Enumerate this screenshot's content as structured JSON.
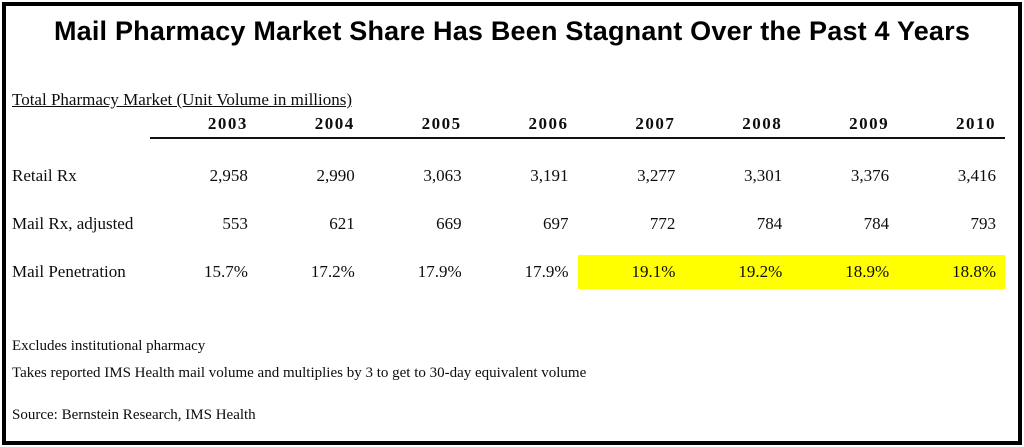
{
  "title": "Mail Pharmacy Market Share Has Been Stagnant Over the Past 4 Years",
  "table": {
    "caption": "Total Pharmacy Market (Unit Volume in millions)",
    "columns": [
      "2003",
      "2004",
      "2005",
      "2006",
      "2007",
      "2008",
      "2009",
      "2010"
    ],
    "rows": [
      {
        "label": "Retail Rx",
        "values": [
          "2,958",
          "2,990",
          "3,063",
          "3,191",
          "3,277",
          "3,301",
          "3,376",
          "3,416"
        ]
      },
      {
        "label": "Mail Rx, adjusted",
        "values": [
          "553",
          "621",
          "669",
          "697",
          "772",
          "784",
          "784",
          "793"
        ]
      },
      {
        "label": "Mail Penetration",
        "values": [
          "15.7%",
          "17.2%",
          "17.9%",
          "17.9%",
          "19.1%",
          "19.2%",
          "18.9%",
          "18.8%"
        ]
      }
    ]
  },
  "footnotes": [
    "Excludes institutional pharmacy",
    "Takes reported IMS Health mail volume and multiplies by 3 to get to 30-day equivalent volume"
  ],
  "source": "Source: Bernstein Research, IMS Health",
  "colors": {
    "highlight": "#ffff00",
    "text": "#000000",
    "border": "#000000"
  },
  "chart_data": {
    "type": "table",
    "title": "Mail Pharmacy Market Share Has Been Stagnant Over the Past 4 Years",
    "subtitle": "Total Pharmacy Market (Unit Volume in millions)",
    "categories": [
      "2003",
      "2004",
      "2005",
      "2006",
      "2007",
      "2008",
      "2009",
      "2010"
    ],
    "series": [
      {
        "name": "Retail Rx",
        "values": [
          2958,
          2990,
          3063,
          3191,
          3277,
          3301,
          3376,
          3416
        ]
      },
      {
        "name": "Mail Rx, adjusted",
        "values": [
          553,
          621,
          669,
          697,
          772,
          784,
          784,
          793
        ]
      },
      {
        "name": "Mail Penetration (%)",
        "values": [
          15.7,
          17.2,
          17.9,
          17.9,
          19.1,
          19.2,
          18.9,
          18.8
        ]
      }
    ],
    "highlighted_cells": {
      "row": "Mail Penetration",
      "years": [
        "2007",
        "2008",
        "2009",
        "2010"
      ]
    },
    "notes": [
      "Excludes institutional pharmacy",
      "Takes reported IMS Health mail volume and multiplies by 3 to get to 30-day equivalent volume"
    ],
    "source": "Source: Bernstein Research, IMS Health"
  }
}
